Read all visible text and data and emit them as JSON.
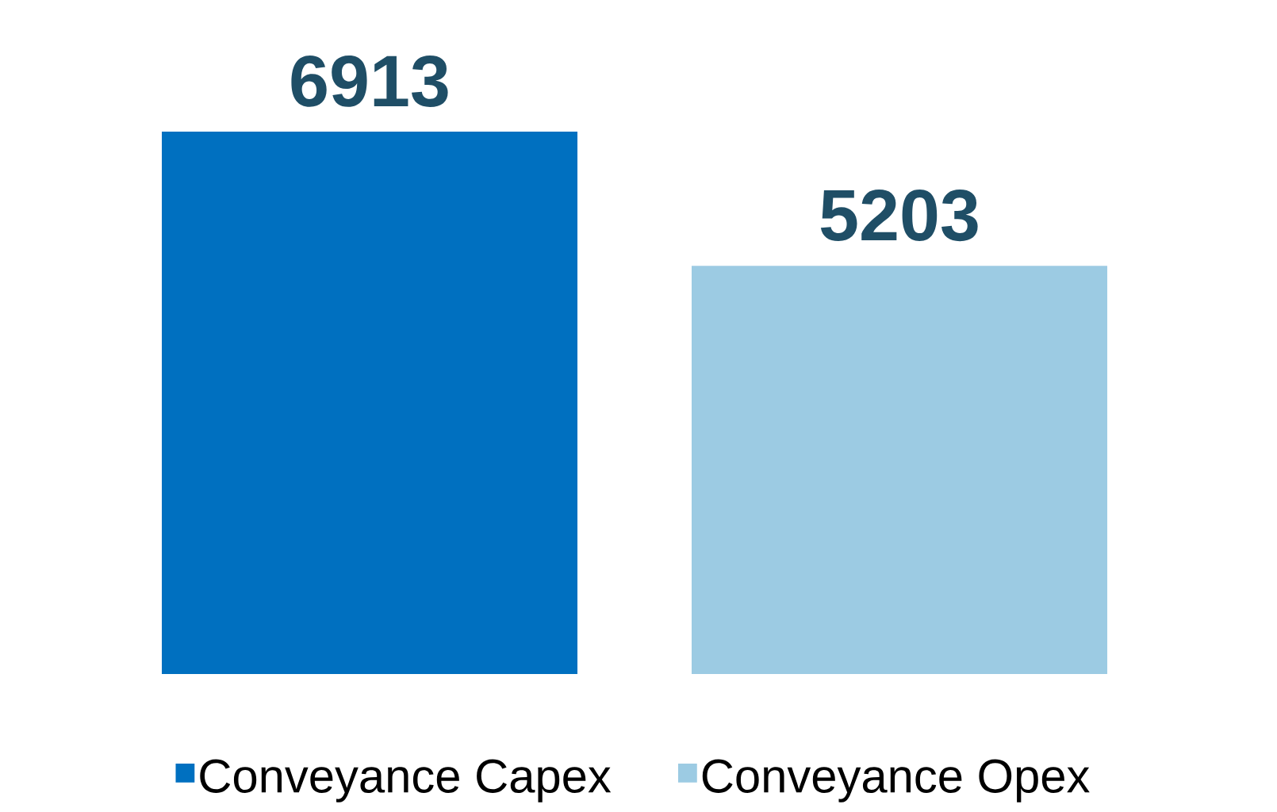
{
  "chart_data": {
    "type": "bar",
    "categories": [
      null
    ],
    "series": [
      {
        "name": "Conveyance Capex",
        "color": "#0070c0",
        "values": [
          6913
        ]
      },
      {
        "name": "Conveyance Opex",
        "color": "#9ccbe3",
        "values": [
          5203
        ]
      }
    ],
    "data_labels": true,
    "legend": "bottom"
  }
}
